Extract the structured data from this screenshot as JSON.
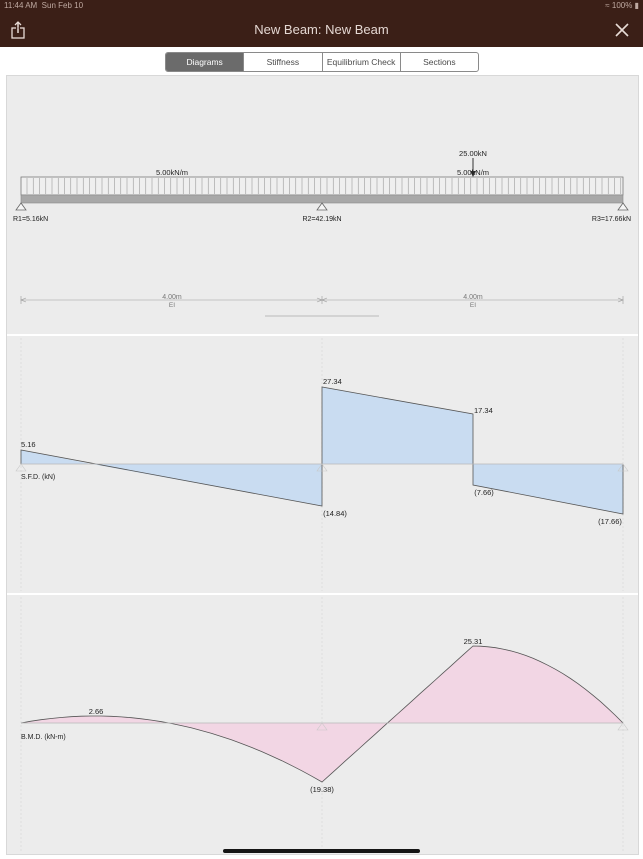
{
  "status_bar": {
    "time": "11:44 AM",
    "date": "Sun Feb 10",
    "battery": "100%"
  },
  "nav": {
    "title": "New Beam: New Beam",
    "share_icon": "share-icon",
    "close_icon": "close-icon"
  },
  "tabs": [
    {
      "label": "Diagrams",
      "active": true
    },
    {
      "label": "Stiffness",
      "active": false
    },
    {
      "label": "Equilibrium Check",
      "active": false
    },
    {
      "label": "Sections",
      "active": false
    }
  ],
  "beam": {
    "udl_label_left": "5.00kN/m",
    "udl_label_right": "5.00kN/m",
    "point_load_label": "25.00kN",
    "reactions": [
      "R1=5.16kN",
      "R2=42.19kN",
      "R3=17.66kN"
    ],
    "spans": [
      {
        "length": "4.00m",
        "stiffness": "EI"
      },
      {
        "length": "4.00m",
        "stiffness": "EI"
      }
    ]
  },
  "sfd": {
    "label": "S.F.D. (kN)",
    "values": {
      "v1": "5.16",
      "v2": "(14.84)",
      "v3": "27.34",
      "v4": "17.34",
      "v5": "(7.66)",
      "v6": "(17.66)"
    }
  },
  "bmd": {
    "label": "B.M.D. (kN-m)",
    "values": {
      "m1": "2.66",
      "m2": "(19.38)",
      "m3": "25.31"
    }
  },
  "colors": {
    "bar": "#3b1f17",
    "sfd_fill": "#c9dcf1",
    "bmd_fill": "#f2d6e4"
  }
}
